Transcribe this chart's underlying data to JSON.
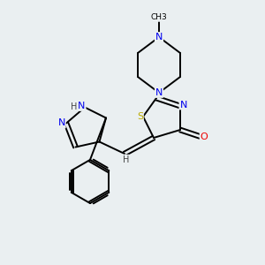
{
  "background_color": "#eaeff1",
  "atom_colors": {
    "C": "#000000",
    "N": "#0000ee",
    "O": "#ee0000",
    "S": "#bbaa00",
    "H": "#444444"
  },
  "bond_color": "#000000",
  "bond_width": 1.4,
  "figsize": [
    3.0,
    3.0
  ],
  "dpi": 100,
  "xlim": [
    0,
    10
  ],
  "ylim": [
    0,
    10
  ],
  "methyl_label": "CH3",
  "H_label": "H",
  "N_label": "N",
  "O_label": "O",
  "S_label": "S"
}
